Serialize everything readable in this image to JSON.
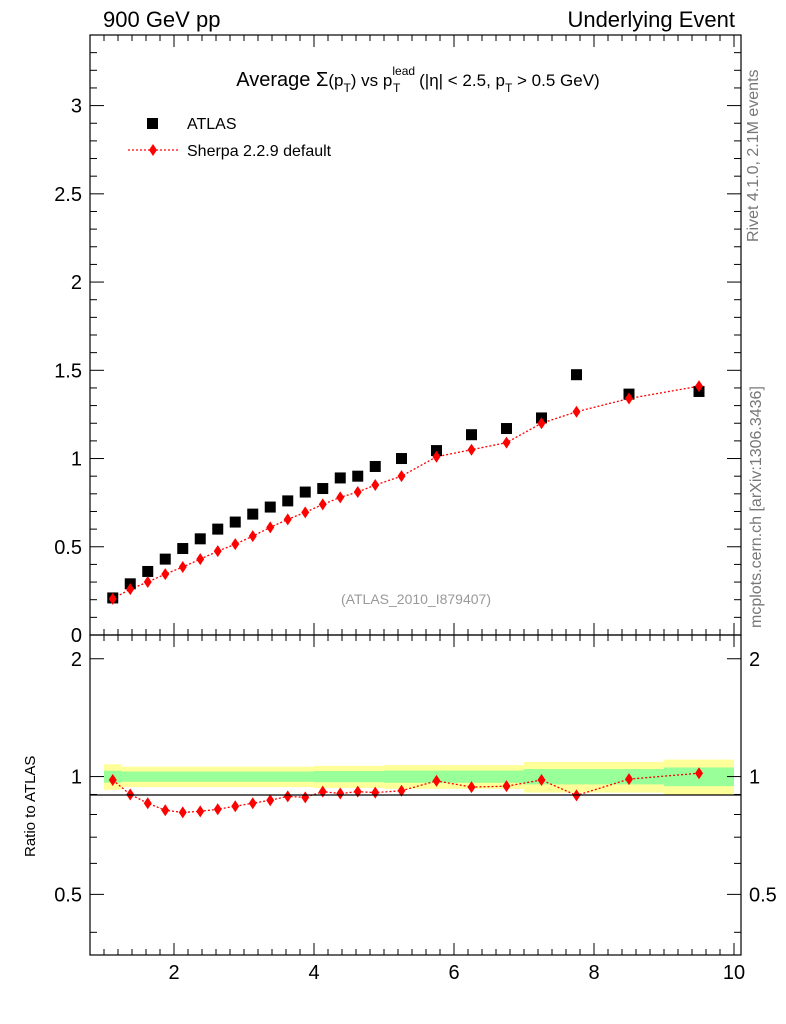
{
  "header": {
    "left": "900 GeV pp",
    "right": "Underlying Event"
  },
  "side_text": {
    "top": "Rivet 4.1.0,  2.1M events",
    "bottom": "mcplots.cern.ch [arXiv:1306.3436]"
  },
  "title": {
    "prefix": "Average ",
    "sigma": "Σ",
    "pt_open": "(p",
    "pt_sub": "T",
    "pt_close": ")",
    "vs": " vs p",
    "lead_sup": "lead",
    "lead_sub": "T",
    "cut": " (|η| < 2.5, p",
    "cut_sub": "T",
    "cut_end": " > 0.5 GeV)"
  },
  "legend": {
    "data_label": "ATLAS",
    "mc_label": "Sherpa 2.2.9 default"
  },
  "watermark": "(ATLAS_2010_I879407)",
  "ratio_ylabel": "Ratio to ATLAS",
  "colors": {
    "data": "#000000",
    "mc": "#ff0000",
    "band_inner": "#99ff99",
    "band_outer": "#ffff99"
  },
  "chart_data": [
    {
      "type": "scatter",
      "panel": "main",
      "xlim": [
        0.8,
        10.1
      ],
      "ylim": [
        0,
        3.4
      ],
      "yticks": [
        0,
        0.5,
        1,
        1.5,
        2,
        2.5,
        3
      ],
      "ytick_labels": [
        "0",
        "0.5",
        "1",
        "1.5",
        "2",
        "2.5",
        "3"
      ],
      "series": [
        {
          "name": "ATLAS",
          "x": [
            1.125,
            1.375,
            1.625,
            1.875,
            2.125,
            2.375,
            2.625,
            2.875,
            3.125,
            3.375,
            3.625,
            3.875,
            4.125,
            4.375,
            4.625,
            4.875,
            5.25,
            5.75,
            6.25,
            6.75,
            7.25,
            7.75,
            8.5,
            9.5
          ],
          "y": [
            0.21,
            0.29,
            0.36,
            0.43,
            0.49,
            0.545,
            0.6,
            0.64,
            0.685,
            0.725,
            0.76,
            0.81,
            0.83,
            0.89,
            0.9,
            0.955,
            1.0,
            1.045,
            1.135,
            1.17,
            1.23,
            1.475,
            1.365,
            1.38
          ]
        },
        {
          "name": "Sherpa 2.2.9 default",
          "x": [
            1.125,
            1.375,
            1.625,
            1.875,
            2.125,
            2.375,
            2.625,
            2.875,
            3.125,
            3.375,
            3.625,
            3.875,
            4.125,
            4.375,
            4.625,
            4.875,
            5.25,
            5.75,
            6.25,
            6.75,
            7.25,
            7.75,
            8.5,
            9.5
          ],
          "y": [
            0.205,
            0.26,
            0.3,
            0.345,
            0.385,
            0.43,
            0.475,
            0.515,
            0.56,
            0.61,
            0.655,
            0.695,
            0.74,
            0.78,
            0.81,
            0.85,
            0.9,
            1.01,
            1.05,
            1.09,
            1.2,
            1.265,
            1.34,
            1.41
          ]
        }
      ]
    },
    {
      "type": "line",
      "panel": "ratio",
      "xlabel": "",
      "ylabel": "Ratio to ATLAS",
      "xlim": [
        0.8,
        10.1
      ],
      "ylim": [
        0.35,
        2.3
      ],
      "xticks": [
        2,
        4,
        6,
        8,
        10
      ],
      "xtick_labels": [
        "2",
        "4",
        "6",
        "8",
        "10"
      ],
      "yticks": [
        0.5,
        1,
        2
      ],
      "ytick_labels": [
        "0.5",
        "1",
        "2"
      ],
      "bands": [
        {
          "x0": 1.0,
          "x1": 1.25,
          "inner": [
            0.965,
            1.035
          ],
          "outer": [
            0.925,
            1.075
          ]
        },
        {
          "x0": 1.25,
          "x1": 4.0,
          "inner": [
            0.97,
            1.03
          ],
          "outer": [
            0.94,
            1.06
          ]
        },
        {
          "x0": 4.0,
          "x1": 5.0,
          "inner": [
            0.967,
            1.033
          ],
          "outer": [
            0.935,
            1.065
          ]
        },
        {
          "x0": 5.0,
          "x1": 7.0,
          "inner": [
            0.964,
            1.036
          ],
          "outer": [
            0.93,
            1.07
          ]
        },
        {
          "x0": 7.0,
          "x1": 9.0,
          "inner": [
            0.955,
            1.045
          ],
          "outer": [
            0.91,
            1.09
          ]
        },
        {
          "x0": 9.0,
          "x1": 10.0,
          "inner": [
            0.945,
            1.055
          ],
          "outer": [
            0.895,
            1.105
          ]
        }
      ],
      "series": [
        {
          "name": "Sherpa 2.2.9 default",
          "x": [
            1.125,
            1.375,
            1.625,
            1.875,
            2.125,
            2.375,
            2.625,
            2.875,
            3.125,
            3.375,
            3.625,
            3.875,
            4.125,
            4.375,
            4.625,
            4.875,
            5.25,
            5.75,
            6.25,
            6.75,
            7.25,
            7.75,
            8.5,
            9.5
          ],
          "y": [
            0.98,
            0.9,
            0.855,
            0.82,
            0.81,
            0.815,
            0.825,
            0.84,
            0.855,
            0.87,
            0.89,
            0.885,
            0.915,
            0.905,
            0.915,
            0.91,
            0.92,
            0.975,
            0.94,
            0.945,
            0.98,
            0.895,
            0.985,
            1.02
          ]
        }
      ]
    }
  ]
}
